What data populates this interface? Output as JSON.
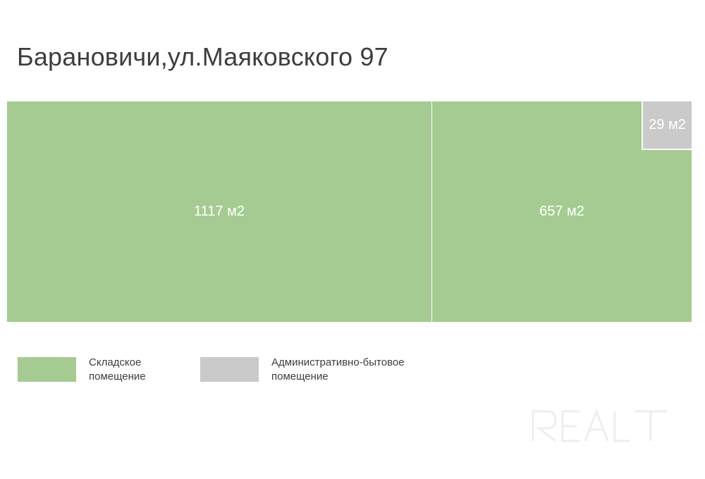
{
  "title": "Барановичи,ул.Маяковского 97",
  "colors": {
    "warehouse": "#a5cb92",
    "admin": "#cacaca",
    "watermark": "#eeeeee"
  },
  "chart_data": {
    "type": "treemap",
    "title": "Барановичи,ул.Маяковского 97",
    "unit": "м2",
    "series": [
      {
        "name": "Складское помещение",
        "color": "#a5cb92"
      },
      {
        "name": "Административно-бытовое помещение",
        "color": "#cacaca"
      }
    ],
    "tiles": [
      {
        "label": "1117 м2",
        "value": 1117,
        "category": "Складское помещение"
      },
      {
        "label": "657 м2",
        "value": 657,
        "category": "Складское помещение"
      },
      {
        "label": "29 м2",
        "value": 29,
        "category": "Административно-бытовое помещение"
      }
    ],
    "legend_position": "bottom-left"
  },
  "legend": [
    {
      "label": "Складское помещение",
      "color": "#a5cb92"
    },
    {
      "label": "Административно-бытовое помещение",
      "color": "#cacaca"
    }
  ],
  "watermark": {
    "text": "REALT",
    "icon": "realt-logo"
  }
}
